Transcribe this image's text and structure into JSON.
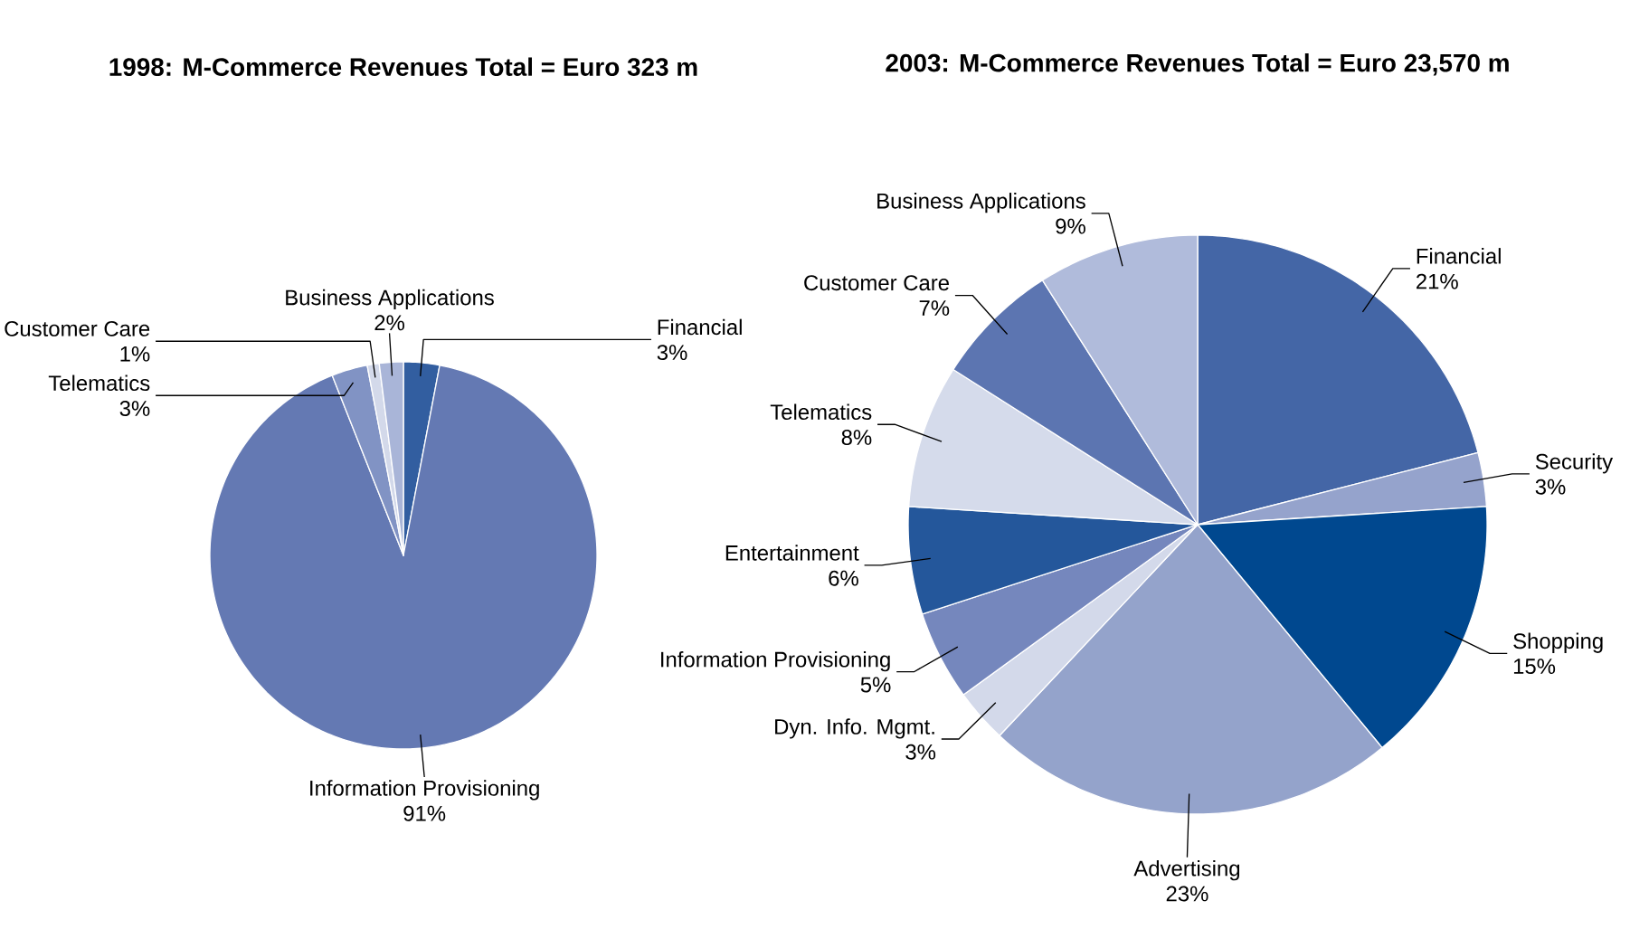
{
  "chart_data": [
    {
      "type": "pie",
      "title": "1998: M-Commerce Revenues Total = Euro 323 m",
      "categories": [
        "Financial",
        "Information Provisioning",
        "Telematics",
        "Customer Care",
        "Business Applications"
      ],
      "values": [
        3,
        91,
        3,
        1,
        2
      ],
      "value_labels": [
        "3%",
        "91%",
        "3%",
        "1%",
        "2%"
      ],
      "colors": [
        "#325ea0",
        "#6479b3",
        "#8193c4",
        "#d3d9ea",
        "#a9b5d8"
      ]
    },
    {
      "type": "pie",
      "title": "2003: M-Commerce Revenues Total = Euro 23,570 m",
      "categories": [
        "Financial",
        "Security",
        "Shopping",
        "Advertising",
        "Dyn. Info. Mgmt.",
        "Information Provisioning",
        "Entertainment",
        "Telematics",
        "Customer Care",
        "Business Applications"
      ],
      "values": [
        21,
        3,
        15,
        23,
        3,
        5,
        6,
        8,
        7,
        9
      ],
      "value_labels": [
        "21%",
        "3%",
        "15%",
        "23%",
        "3%",
        "5%",
        "6%",
        "8%",
        "7%",
        "9%"
      ],
      "colors": [
        "#4466a6",
        "#95a3cc",
        "#00488f",
        "#94a3cb",
        "#d3d9ea",
        "#7587bd",
        "#24579b",
        "#d5dbeb",
        "#5c75b1",
        "#b0bbdb"
      ]
    }
  ]
}
